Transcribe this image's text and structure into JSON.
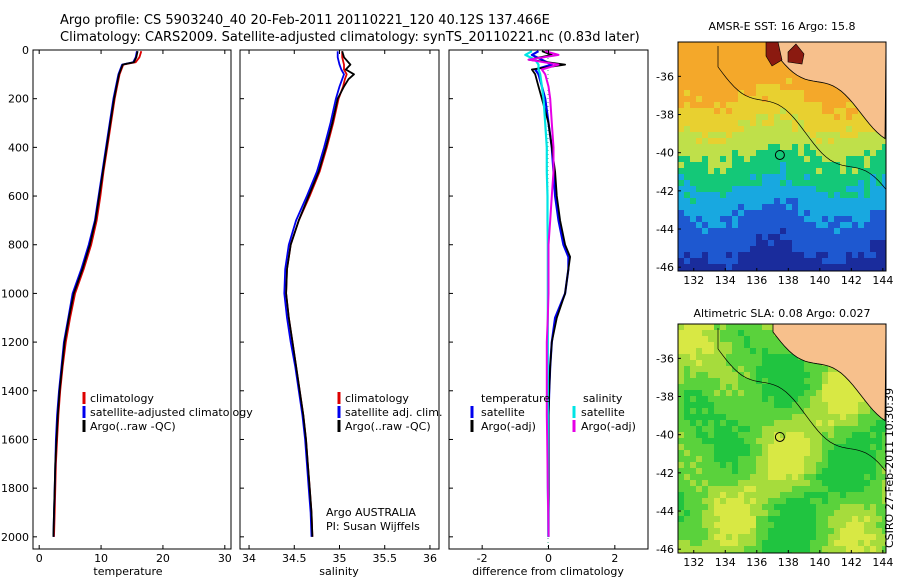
{
  "title": {
    "line1": "Argo profile: CS 5903240_40 20-Feb-2011 20110221_120 40.12S 137.466E",
    "line2": "Climatology: CARS2009. Satellite-adjusted climatology: synTS_20110221.nc (0.83d later)"
  },
  "credit": "CSIRO 27-Feb-2011 10:30:39",
  "colors": {
    "climatology": "#dd0000",
    "satellite": "#0000ee",
    "argo": "#000000",
    "sal_satellite": "#00e5e5",
    "sal_argo": "#e600e6",
    "land": "#f7c08c",
    "dark_land": "#8b1a10"
  },
  "chart_data": [
    {
      "type": "line",
      "name": "temperature-profile",
      "xlabel": "temperature",
      "xlim": [
        -1,
        31
      ],
      "ylim": [
        0,
        2050
      ],
      "yreversed": true,
      "xticks": [
        "0",
        "10",
        "20",
        "30"
      ],
      "yticks": [
        "0",
        "200",
        "400",
        "600",
        "800",
        "1000",
        "1200",
        "1400",
        "1600",
        "1800",
        "2000"
      ],
      "depths": [
        5,
        30,
        50,
        60,
        100,
        150,
        200,
        300,
        400,
        500,
        600,
        700,
        800,
        900,
        1000,
        1100,
        1200,
        1300,
        1400,
        1500,
        1600,
        1700,
        1800,
        1900,
        2000
      ],
      "series": [
        {
          "name": "climatology",
          "values": [
            16.5,
            16.2,
            15.6,
            13.6,
            13.0,
            12.6,
            12.2,
            11.6,
            11.0,
            10.4,
            9.9,
            9.3,
            8.4,
            7.2,
            5.8,
            5.0,
            4.3,
            3.8,
            3.4,
            3.1,
            2.9,
            2.7,
            2.6,
            2.5,
            2.4
          ]
        },
        {
          "name": "satellite-adjusted climatology",
          "values": [
            15.8,
            15.6,
            15.2,
            13.4,
            12.8,
            12.4,
            12.0,
            11.4,
            10.8,
            10.2,
            9.6,
            9.0,
            8.0,
            6.8,
            5.4,
            4.7,
            4.0,
            3.6,
            3.2,
            2.9,
            2.7,
            2.6,
            2.5,
            2.4,
            2.3
          ]
        },
        {
          "name": "Argo(..raw -QC)",
          "values": [
            15.9,
            15.7,
            15.3,
            13.5,
            12.9,
            12.5,
            12.1,
            11.5,
            10.9,
            10.3,
            9.7,
            9.1,
            8.2,
            7.0,
            5.6,
            4.8,
            4.1,
            3.7,
            3.3,
            3.0,
            2.8,
            2.6,
            2.5,
            2.4,
            2.3
          ]
        }
      ],
      "legend": {
        "placement": "lower-center",
        "entries": [
          "climatology",
          "satellite-adjusted climatology",
          "Argo(..raw -QC)"
        ]
      }
    },
    {
      "type": "line",
      "name": "salinity-profile",
      "xlabel": "salinity",
      "xlim": [
        33.9,
        36.1
      ],
      "ylim": [
        0,
        2050
      ],
      "yreversed": true,
      "xticks": [
        "34",
        "34.5",
        "35",
        "35.5",
        "36"
      ],
      "depths": [
        5,
        30,
        60,
        80,
        100,
        120,
        150,
        200,
        300,
        400,
        500,
        600,
        700,
        800,
        900,
        1000,
        1100,
        1200,
        1300,
        1400,
        1500,
        1600,
        1700,
        1800,
        1900,
        2000
      ],
      "series": [
        {
          "name": "climatology",
          "values": [
            35.03,
            35.03,
            35.05,
            35.05,
            35.08,
            35.06,
            35.04,
            34.99,
            34.93,
            34.86,
            34.78,
            34.67,
            34.55,
            34.46,
            34.42,
            34.41,
            34.44,
            34.48,
            34.52,
            34.56,
            34.6,
            34.63,
            34.65,
            34.67,
            34.69,
            34.7
          ]
        },
        {
          "name": "satellite adj. clim.",
          "values": [
            34.98,
            34.98,
            35.0,
            35.02,
            35.05,
            35.03,
            35.0,
            34.96,
            34.9,
            34.83,
            34.75,
            34.64,
            34.52,
            34.44,
            34.4,
            34.39,
            34.42,
            34.46,
            34.51,
            34.55,
            34.59,
            34.62,
            34.64,
            34.66,
            34.68,
            34.69
          ]
        },
        {
          "name": "Argo(..raw -QC)",
          "values": [
            35.03,
            35.05,
            35.12,
            35.07,
            35.16,
            35.1,
            35.05,
            34.98,
            34.92,
            34.85,
            34.77,
            34.66,
            34.55,
            34.46,
            34.42,
            34.41,
            34.44,
            34.48,
            34.52,
            34.56,
            34.6,
            34.63,
            34.65,
            34.67,
            34.69,
            34.7
          ]
        }
      ],
      "legend": {
        "placement": "lower-center",
        "entries": [
          "climatology",
          "satellite adj. clim.",
          "Argo(..raw -QC)"
        ]
      },
      "annotations": [
        "Argo AUSTRALIA",
        "PI: Susan Wijffels"
      ]
    },
    {
      "type": "line",
      "name": "difference-from-climatology",
      "xlabel": "difference from climatology",
      "xlim": [
        -3,
        3
      ],
      "ylim": [
        0,
        2050
      ],
      "yreversed": true,
      "xticks": [
        "-2",
        "0",
        "2"
      ],
      "depths": [
        5,
        20,
        40,
        60,
        80,
        100,
        150,
        200,
        300,
        400,
        500,
        600,
        700,
        800,
        850,
        900,
        1000,
        1100,
        1200,
        1300,
        1400,
        1500,
        1600,
        1700,
        1800,
        1900,
        2000
      ],
      "series": [
        {
          "name": "temperature satellite",
          "values": [
            -0.3,
            -0.5,
            -0.2,
            0.1,
            -0.4,
            -0.3,
            -0.2,
            -0.1,
            0.0,
            0.1,
            0.15,
            0.2,
            0.3,
            0.45,
            0.6,
            0.6,
            0.5,
            0.2,
            0.1,
            0.05,
            0.02,
            0.0,
            0.0,
            0.0,
            0.0,
            0.0,
            0.0
          ]
        },
        {
          "name": "temperature Argo(-adj)",
          "values": [
            -0.2,
            0.1,
            -0.6,
            0.5,
            -0.5,
            -0.4,
            -0.3,
            -0.2,
            0.0,
            0.1,
            0.2,
            0.25,
            0.35,
            0.5,
            0.65,
            0.6,
            0.5,
            0.25,
            0.1,
            0.05,
            0.02,
            0.0,
            0.0,
            0.0,
            0.0,
            0.0,
            0.0
          ]
        },
        {
          "name": "salinity satellite",
          "values": [
            -0.5,
            -0.7,
            -0.4,
            -0.3,
            -0.3,
            -0.25,
            -0.2,
            -0.15,
            -0.1,
            -0.05,
            -0.05,
            -0.03,
            -0.03,
            -0.02,
            -0.02,
            -0.02,
            -0.02,
            -0.02,
            -0.02,
            -0.02,
            -0.02,
            -0.02,
            -0.02,
            -0.02,
            -0.02,
            -0.01,
            -0.01
          ]
        },
        {
          "name": "salinity Argo(-adj)",
          "values": [
            -0.1,
            0.3,
            -0.6,
            0.3,
            -0.2,
            -0.1,
            0.0,
            0.05,
            0.1,
            0.15,
            0.15,
            0.1,
            0.05,
            0.0,
            0.0,
            0.0,
            0.0,
            -0.02,
            -0.05,
            -0.05,
            -0.05,
            -0.05,
            -0.04,
            -0.03,
            -0.02,
            -0.01,
            0.0
          ]
        }
      ],
      "legend": {
        "placement": "lower-center",
        "headers": [
          "temperature",
          "salinity"
        ],
        "entries": [
          "satellite",
          "Argo(-adj)",
          "satellite",
          "Argo(-adj)"
        ]
      }
    },
    {
      "type": "heatmap",
      "name": "amsr-e-sst-map",
      "title": "AMSR-E SST: 16 Argo: 15.8",
      "xlim": [
        131,
        144.2
      ],
      "ylim": [
        -46.2,
        -34.2
      ],
      "xticks": [
        "132",
        "134",
        "136",
        "138",
        "140",
        "142",
        "144"
      ],
      "yticks": [
        "-36",
        "-38",
        "-40",
        "-42",
        "-44",
        "-46"
      ],
      "marker": {
        "lon": 137.466,
        "lat": -40.12
      },
      "bands_lat_to_color": [
        {
          "lat": -35,
          "color": "#f4a82a"
        },
        {
          "lat": -37,
          "color": "#e8d030"
        },
        {
          "lat": -38.5,
          "color": "#bfe04a"
        },
        {
          "lat": -40,
          "color": "#14c878"
        },
        {
          "lat": -41.5,
          "color": "#18a8e0"
        },
        {
          "lat": -43,
          "color": "#1e58d0"
        },
        {
          "lat": -45,
          "color": "#1a2c9c"
        }
      ]
    },
    {
      "type": "heatmap",
      "name": "altimetric-sla-map",
      "title": "Altimetric SLA: 0.08 Argo: 0.027",
      "xlim": [
        131,
        144.2
      ],
      "ylim": [
        -46.2,
        -34.2
      ],
      "xticks": [
        "132",
        "134",
        "136",
        "138",
        "140",
        "142",
        "144"
      ],
      "yticks": [
        "-36",
        "-38",
        "-40",
        "-42",
        "-44",
        "-46"
      ],
      "marker": {
        "lon": 137.466,
        "lat": -40.12
      },
      "colors": [
        "#20c440",
        "#5ad23c",
        "#a6dc3c",
        "#d8e844"
      ]
    }
  ]
}
